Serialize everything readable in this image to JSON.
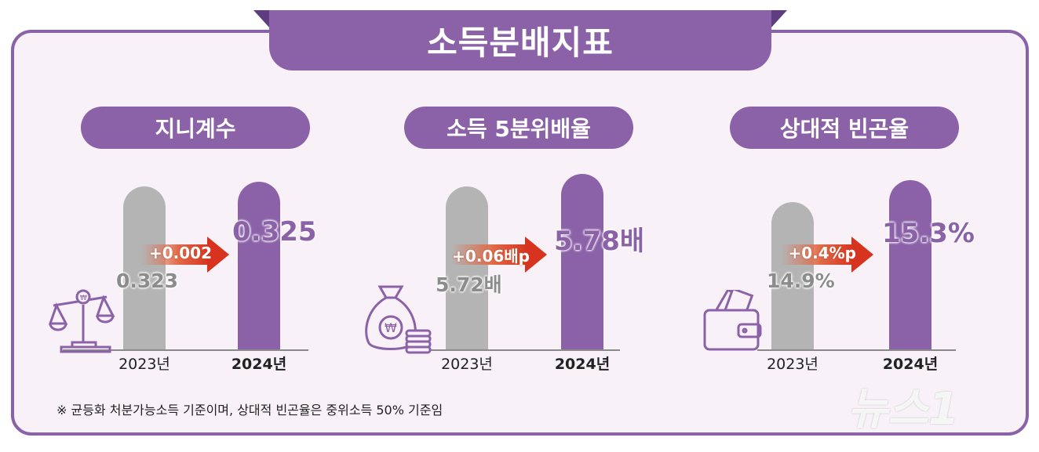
{
  "title": "소득분배지표",
  "note": "※ 균등화 처분가능소득 기준이며, 상대적 빈곤율은 중위소득 50% 기준임",
  "watermark": "뉴스1",
  "colors": {
    "accent": "#8b62a8",
    "prev": "#b4b4b4",
    "arrow": "#d8331f"
  },
  "chart_data": {
    "type": "bar",
    "title": "소득분배지표",
    "categories": [
      "2023년",
      "2024년"
    ],
    "panels": [
      {
        "title": "지니계수",
        "icon": "scale-icon",
        "values": [
          0.323,
          0.325
        ],
        "labels": [
          "0.323",
          "0.325"
        ],
        "change": "+0.002"
      },
      {
        "title": "소득 5분위배율",
        "icon": "money-bag-icon",
        "values": [
          5.72,
          5.78
        ],
        "labels": [
          "5.72배",
          "5.78배"
        ],
        "change": "+0.06배p"
      },
      {
        "title": "상대적 빈곤율",
        "icon": "wallet-icon",
        "values": [
          14.9,
          15.3
        ],
        "labels": [
          "14.9%",
          "15.3%"
        ],
        "change": "+0.4%p"
      }
    ]
  }
}
